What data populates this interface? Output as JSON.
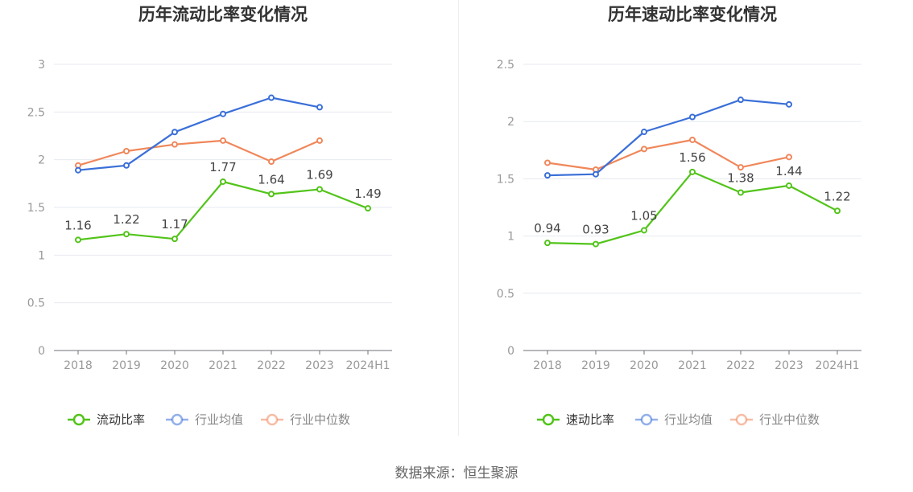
{
  "chart_data": [
    {
      "type": "line",
      "title": "历年流动比率变化情况",
      "categories": [
        "2018",
        "2019",
        "2020",
        "2021",
        "2022",
        "2023",
        "2024H1"
      ],
      "y_ticks": [
        "0",
        "0.5",
        "1",
        "1.5",
        "2",
        "2.5",
        "3"
      ],
      "ylim": [
        0,
        3
      ],
      "grid": true,
      "legend_position": "bottom",
      "series": [
        {
          "name": "流动比率",
          "color": "#52c41a",
          "values": [
            1.16,
            1.22,
            1.17,
            1.77,
            1.64,
            1.69,
            1.49
          ],
          "labels": [
            "1.16",
            "1.22",
            "1.17",
            "1.77",
            "1.64",
            "1.69",
            "1.49"
          ]
        },
        {
          "name": "行业均值",
          "color": "#3a6fd8",
          "values": [
            1.89,
            1.94,
            2.29,
            2.48,
            2.65,
            2.55,
            null
          ]
        },
        {
          "name": "行业中位数",
          "color": "#f0875a",
          "values": [
            1.94,
            2.09,
            2.16,
            2.2,
            1.98,
            2.2,
            null
          ]
        }
      ]
    },
    {
      "type": "line",
      "title": "历年速动比率变化情况",
      "categories": [
        "2018",
        "2019",
        "2020",
        "2021",
        "2022",
        "2023",
        "2024H1"
      ],
      "y_ticks": [
        "0",
        "0.5",
        "1",
        "1.5",
        "2",
        "2.5"
      ],
      "ylim": [
        0,
        2.5
      ],
      "grid": true,
      "legend_position": "bottom",
      "series": [
        {
          "name": "速动比率",
          "color": "#52c41a",
          "values": [
            0.94,
            0.93,
            1.05,
            1.56,
            1.38,
            1.44,
            1.22
          ],
          "labels": [
            "0.94",
            "0.93",
            "1.05",
            "1.56",
            "1.38",
            "1.44",
            "1.22"
          ]
        },
        {
          "name": "行业均值",
          "color": "#3a6fd8",
          "values": [
            1.53,
            1.54,
            1.91,
            2.04,
            2.19,
            2.15,
            null
          ]
        },
        {
          "name": "行业中位数",
          "color": "#f0875a",
          "values": [
            1.64,
            1.58,
            1.76,
            1.84,
            1.6,
            1.69,
            null
          ]
        }
      ]
    }
  ],
  "source_text": "数据来源：恒生聚源"
}
